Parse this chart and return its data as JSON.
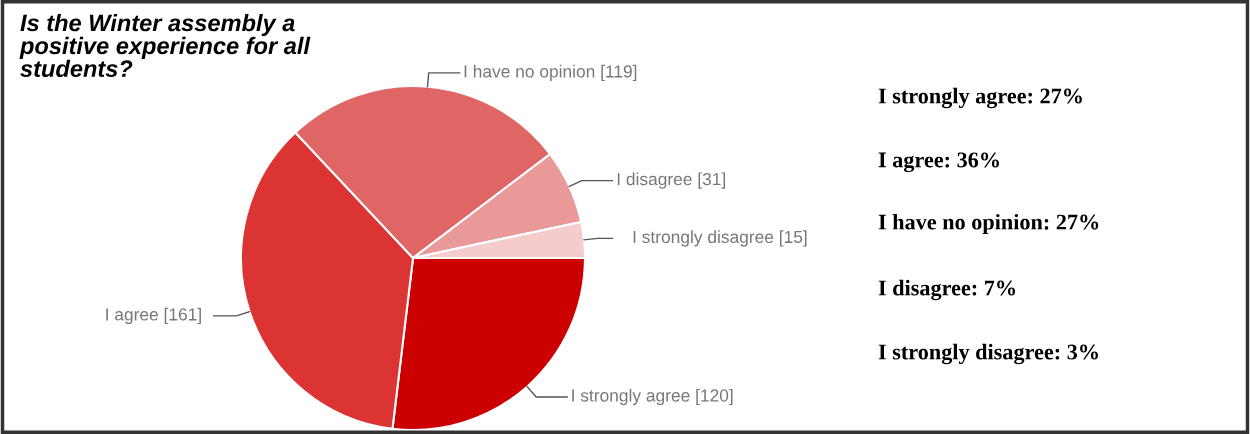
{
  "chart_data": {
    "type": "pie",
    "title": "Is the Winter assembly a\npositive experience for all\nstudents?",
    "categories": [
      "I strongly agree",
      "I agree",
      "I have no opinion",
      "I disagree",
      "I strongly disagree"
    ],
    "values": [
      120,
      161,
      119,
      31,
      15
    ],
    "value_labels": [
      "[120]",
      "[161]",
      "[119]",
      "[31]",
      "[15]"
    ],
    "colors": [
      "#cc0000",
      "#dc3333",
      "#e06666",
      "#ea9999",
      "#f4cccc"
    ],
    "legend": false,
    "annotations": [
      "I strongly agree: 27%",
      "I agree: 36%",
      "I have no opinion: 27%",
      "I disagree: 7%",
      "I strongly disagree: 3%"
    ]
  }
}
